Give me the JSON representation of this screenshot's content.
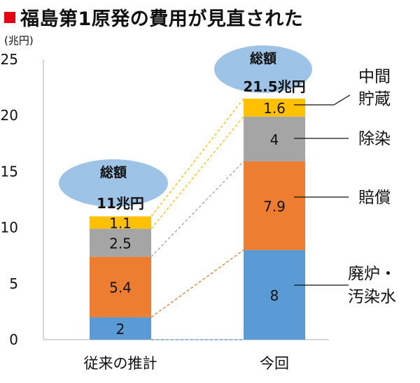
{
  "title": "福島第1原発の費用が見直された",
  "colors": {
    "title_marker": "#e60012",
    "decommissioning": "#5b9bd5",
    "compensation": "#ed7d31",
    "decontamination": "#a5a5a5",
    "interim_storage": "#ffc000",
    "total_ellipse": "#9dc3e6"
  },
  "chart_data": {
    "type": "bar",
    "stacked": true,
    "unit_label": "(兆円)",
    "ylim": [
      0,
      25
    ],
    "yticks": [
      0,
      5,
      10,
      15,
      20,
      25
    ],
    "grid": false,
    "categories": [
      "従来の推計",
      "今回"
    ],
    "series": [
      {
        "name": "廃炉・汚染水",
        "values": [
          2,
          8
        ],
        "labels": [
          "2",
          "8"
        ],
        "color": "#5b9bd5"
      },
      {
        "name": "賠償",
        "values": [
          5.4,
          7.9
        ],
        "labels": [
          "5.4",
          "7.9"
        ],
        "color": "#ed7d31"
      },
      {
        "name": "除染",
        "values": [
          2.5,
          4
        ],
        "labels": [
          "2.5",
          "4"
        ],
        "color": "#a5a5a5"
      },
      {
        "name": "中間貯蔵",
        "values": [
          1.1,
          1.6
        ],
        "labels": [
          "1.1",
          "1.6"
        ],
        "color": "#ffc000"
      }
    ],
    "totals": [
      {
        "heading": "総額",
        "value": "11兆円"
      },
      {
        "heading": "総額",
        "value": "21.5兆円"
      }
    ],
    "callouts": [
      {
        "series": "中間貯蔵",
        "lines": [
          "中間",
          "貯蔵"
        ]
      },
      {
        "series": "除染",
        "lines": [
          "除染"
        ]
      },
      {
        "series": "賠償",
        "lines": [
          "賠償"
        ]
      },
      {
        "series": "廃炉・汚染水",
        "lines": [
          "廃炉・",
          "汚染水"
        ]
      }
    ]
  }
}
